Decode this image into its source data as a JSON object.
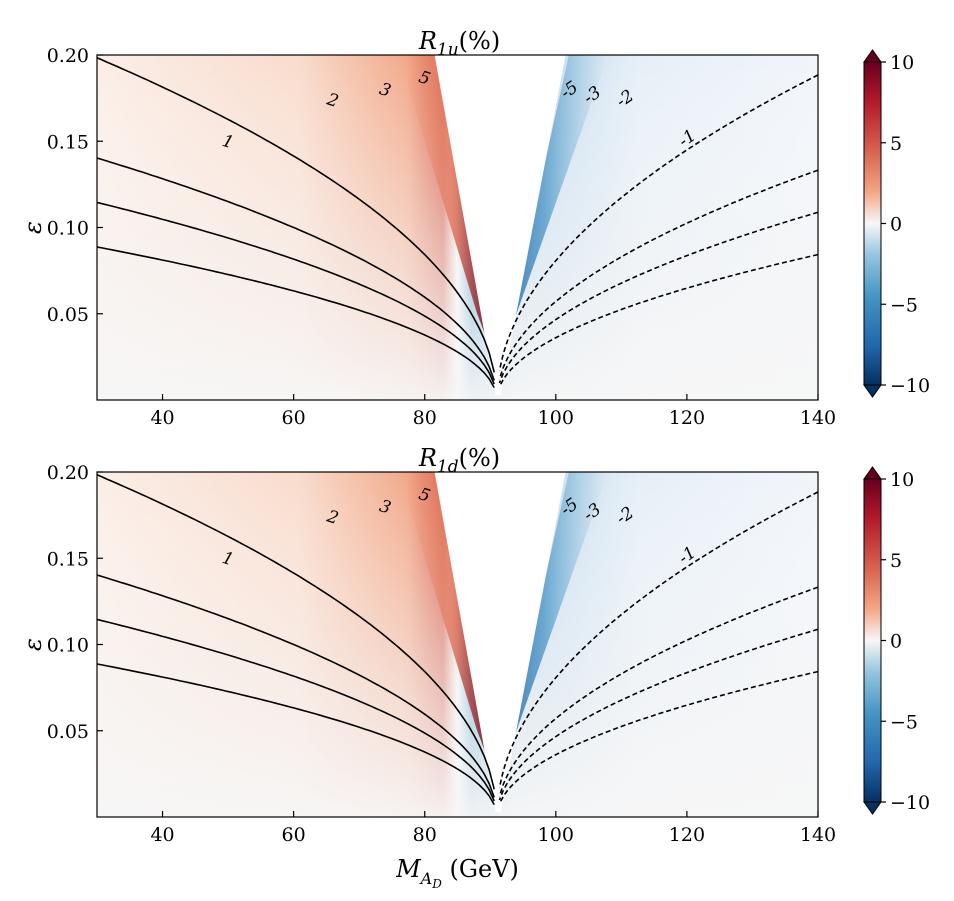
{
  "chart_data": [
    {
      "type": "heatmap",
      "title": "R1u(%)",
      "title_parts": {
        "base": "R",
        "sub": "1u",
        "suffix": "(%)"
      },
      "xlabel": "",
      "ylabel": "ε",
      "xlim": [
        30,
        140
      ],
      "ylim": [
        0,
        0.2
      ],
      "xticks": [
        "40",
        "60",
        "80",
        "100",
        "120",
        "140"
      ],
      "yticks": [
        "0.05",
        "0.10",
        "0.15",
        "0.20"
      ],
      "colorbar": {
        "range": [
          -10,
          10
        ],
        "ticks": [
          "10",
          "5",
          "0",
          "−5",
          "−10"
        ],
        "extend": "both",
        "colormap": "RdBu_r",
        "colors": {
          "max": "#67001f",
          "pos": "#d6604d",
          "mid": "#f7f7f7",
          "neg": "#4393c3",
          "min": "#053061"
        }
      },
      "contours": [
        {
          "level": 1,
          "label": "1",
          "style": "solid",
          "label_at": [
            50,
            0.15
          ]
        },
        {
          "level": 2,
          "label": "2",
          "style": "solid",
          "label_at": [
            66,
            0.174
          ]
        },
        {
          "level": 3,
          "label": "3",
          "style": "solid",
          "label_at": [
            74,
            0.18
          ]
        },
        {
          "level": 5,
          "label": "5",
          "style": "solid",
          "label_at": [
            80,
            0.187
          ]
        },
        {
          "level": -5,
          "label": "5",
          "style": "dashed",
          "label_at": [
            102,
            0.18
          ]
        },
        {
          "level": -3,
          "label": "3",
          "style": "dashed",
          "label_at": [
            105.5,
            0.177
          ]
        },
        {
          "level": -2,
          "label": "2",
          "style": "dashed",
          "label_at": [
            110.5,
            0.175
          ]
        },
        {
          "level": -1,
          "label": "1",
          "style": "dashed",
          "label_at": [
            120,
            0.152
          ]
        }
      ],
      "blank_region": "white wedge around M ≈ 91 GeV"
    },
    {
      "type": "heatmap",
      "title": "R1d(%)",
      "title_parts": {
        "base": "R",
        "sub": "1d",
        "suffix": "(%)"
      },
      "xlabel": "MAD (GeV)",
      "xlabel_parts": {
        "base": "M",
        "sub": "A",
        "subsub": "D",
        "suffix": " (GeV)"
      },
      "ylabel": "ε",
      "xlim": [
        30,
        140
      ],
      "ylim": [
        0,
        0.2
      ],
      "xticks": [
        "40",
        "60",
        "80",
        "100",
        "120",
        "140"
      ],
      "yticks": [
        "0.05",
        "0.10",
        "0.15",
        "0.20"
      ],
      "colorbar": {
        "range": [
          -10,
          10
        ],
        "ticks": [
          "10",
          "5",
          "0",
          "−5",
          "−10"
        ],
        "extend": "both",
        "colormap": "RdBu_r",
        "colors": {
          "max": "#67001f",
          "pos": "#d6604d",
          "mid": "#f7f7f7",
          "neg": "#4393c3",
          "min": "#053061"
        }
      },
      "contours": [
        {
          "level": 1,
          "label": "1",
          "style": "solid",
          "label_at": [
            50,
            0.15
          ]
        },
        {
          "level": 2,
          "label": "2",
          "style": "solid",
          "label_at": [
            66,
            0.174
          ]
        },
        {
          "level": 3,
          "label": "3",
          "style": "solid",
          "label_at": [
            74,
            0.18
          ]
        },
        {
          "level": 5,
          "label": "5",
          "style": "solid",
          "label_at": [
            80,
            0.187
          ]
        },
        {
          "level": -5,
          "label": "5",
          "style": "dashed",
          "label_at": [
            102,
            0.18
          ]
        },
        {
          "level": -3,
          "label": "3",
          "style": "dashed",
          "label_at": [
            105.5,
            0.177
          ]
        },
        {
          "level": -2,
          "label": "2",
          "style": "dashed",
          "label_at": [
            110.5,
            0.175
          ]
        },
        {
          "level": -1,
          "label": "1",
          "style": "dashed",
          "label_at": [
            120,
            0.152
          ]
        }
      ],
      "blank_region": "white wedge around M ≈ 91 GeV"
    }
  ]
}
